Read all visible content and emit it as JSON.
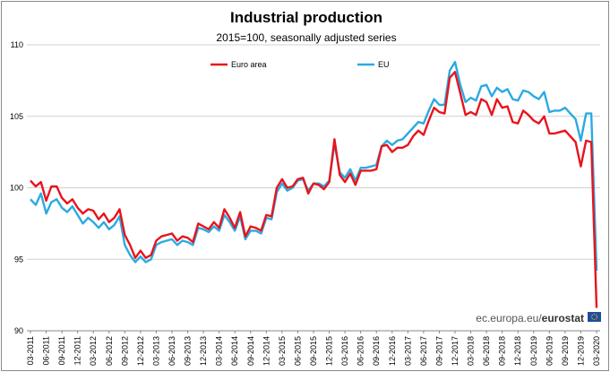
{
  "chart_data": {
    "type": "line",
    "title": "Industrial production",
    "subtitle": "2015=100, seasonally adjusted series",
    "xlabel": "",
    "ylabel": "",
    "ylim": [
      90,
      110
    ],
    "yticks": [
      "90",
      "95",
      "100",
      "105",
      "110"
    ],
    "grid": "horizontal",
    "legend_position": "top-center",
    "x_tick_labels": [
      "03-2011",
      "06-2011",
      "09-2011",
      "12-2011",
      "03-2012",
      "06-2012",
      "09-2012",
      "12-2012",
      "03-2013",
      "06-2013",
      "09-2013",
      "12-2013",
      "03-2014",
      "06-2014",
      "09-2014",
      "12-2014",
      "03-2015",
      "06-2015",
      "09-2015",
      "12-2015",
      "03-2016",
      "06-2016",
      "09-2016",
      "12-2016",
      "03-2017",
      "06-2017",
      "09-2017",
      "12-2017",
      "03-2018",
      "06-2018",
      "09-2018",
      "12-2018",
      "03-2019",
      "06-2019",
      "09-2019",
      "12-2019",
      "03-2020"
    ],
    "x_start": "2011-03",
    "x_end": "2020-03",
    "series": [
      {
        "name": "Euro area",
        "color": "#e8141c",
        "values": [
          100.5,
          100.1,
          100.4,
          99.1,
          100.1,
          100.1,
          99.3,
          98.9,
          99.2,
          98.6,
          98.2,
          98.5,
          98.4,
          97.8,
          98.2,
          97.6,
          97.9,
          98.5,
          96.7,
          96.0,
          95.1,
          95.6,
          95.1,
          95.3,
          96.3,
          96.6,
          96.7,
          96.8,
          96.3,
          96.6,
          96.5,
          96.2,
          97.5,
          97.3,
          97.1,
          97.6,
          97.2,
          98.5,
          97.9,
          97.2,
          98.3,
          96.6,
          97.3,
          97.2,
          97.0,
          98.1,
          98.0,
          100.0,
          100.6,
          100.0,
          100.1,
          100.6,
          100.7,
          99.6,
          100.3,
          100.2,
          99.9,
          100.4,
          103.4,
          100.9,
          100.4,
          101.0,
          100.2,
          101.2,
          101.2,
          101.2,
          101.3,
          102.9,
          103.0,
          102.5,
          102.8,
          102.8,
          103.0,
          103.6,
          104.0,
          103.7,
          104.7,
          105.6,
          105.3,
          105.2,
          107.7,
          108.1,
          106.6,
          105.1,
          105.3,
          105.1,
          106.2,
          106.0,
          105.1,
          106.2,
          105.6,
          105.7,
          104.6,
          104.5,
          105.4,
          105.1,
          104.7,
          104.5,
          105.0,
          103.8,
          103.8,
          103.9,
          104.0,
          103.6,
          103.2,
          101.5,
          103.3,
          103.2,
          91.6
        ]
      },
      {
        "name": "EU",
        "color": "#2aaae2",
        "values": [
          99.2,
          98.8,
          99.6,
          98.2,
          99.0,
          99.2,
          98.6,
          98.3,
          98.7,
          98.1,
          97.5,
          97.9,
          97.6,
          97.2,
          97.6,
          97.1,
          97.4,
          98.0,
          96.0,
          95.3,
          94.8,
          95.2,
          94.8,
          95.0,
          96.0,
          96.2,
          96.3,
          96.4,
          96.0,
          96.3,
          96.2,
          96.0,
          97.2,
          97.1,
          96.9,
          97.3,
          97.0,
          98.1,
          97.6,
          97.0,
          98.0,
          96.4,
          97.0,
          97.0,
          96.8,
          97.9,
          97.8,
          99.7,
          100.3,
          99.8,
          100.0,
          100.5,
          100.6,
          99.8,
          100.3,
          100.3,
          100.1,
          100.5,
          103.1,
          101.1,
          100.7,
          101.3,
          100.5,
          101.4,
          101.4,
          101.5,
          101.6,
          102.9,
          103.3,
          103.0,
          103.3,
          103.4,
          103.8,
          104.2,
          104.6,
          104.5,
          105.4,
          106.2,
          105.8,
          105.8,
          108.2,
          108.8,
          107.2,
          106.0,
          106.3,
          106.1,
          107.1,
          107.2,
          106.4,
          107.0,
          106.7,
          106.9,
          106.2,
          106.1,
          106.8,
          106.7,
          106.4,
          106.2,
          106.7,
          105.3,
          105.4,
          105.4,
          105.6,
          105.2,
          104.8,
          103.3,
          105.2,
          105.2,
          94.2
        ]
      }
    ]
  },
  "source_text_plain": "ec.europa.eu/",
  "source_text_bold": "eurostat",
  "flag_color": "#1f4e9c"
}
